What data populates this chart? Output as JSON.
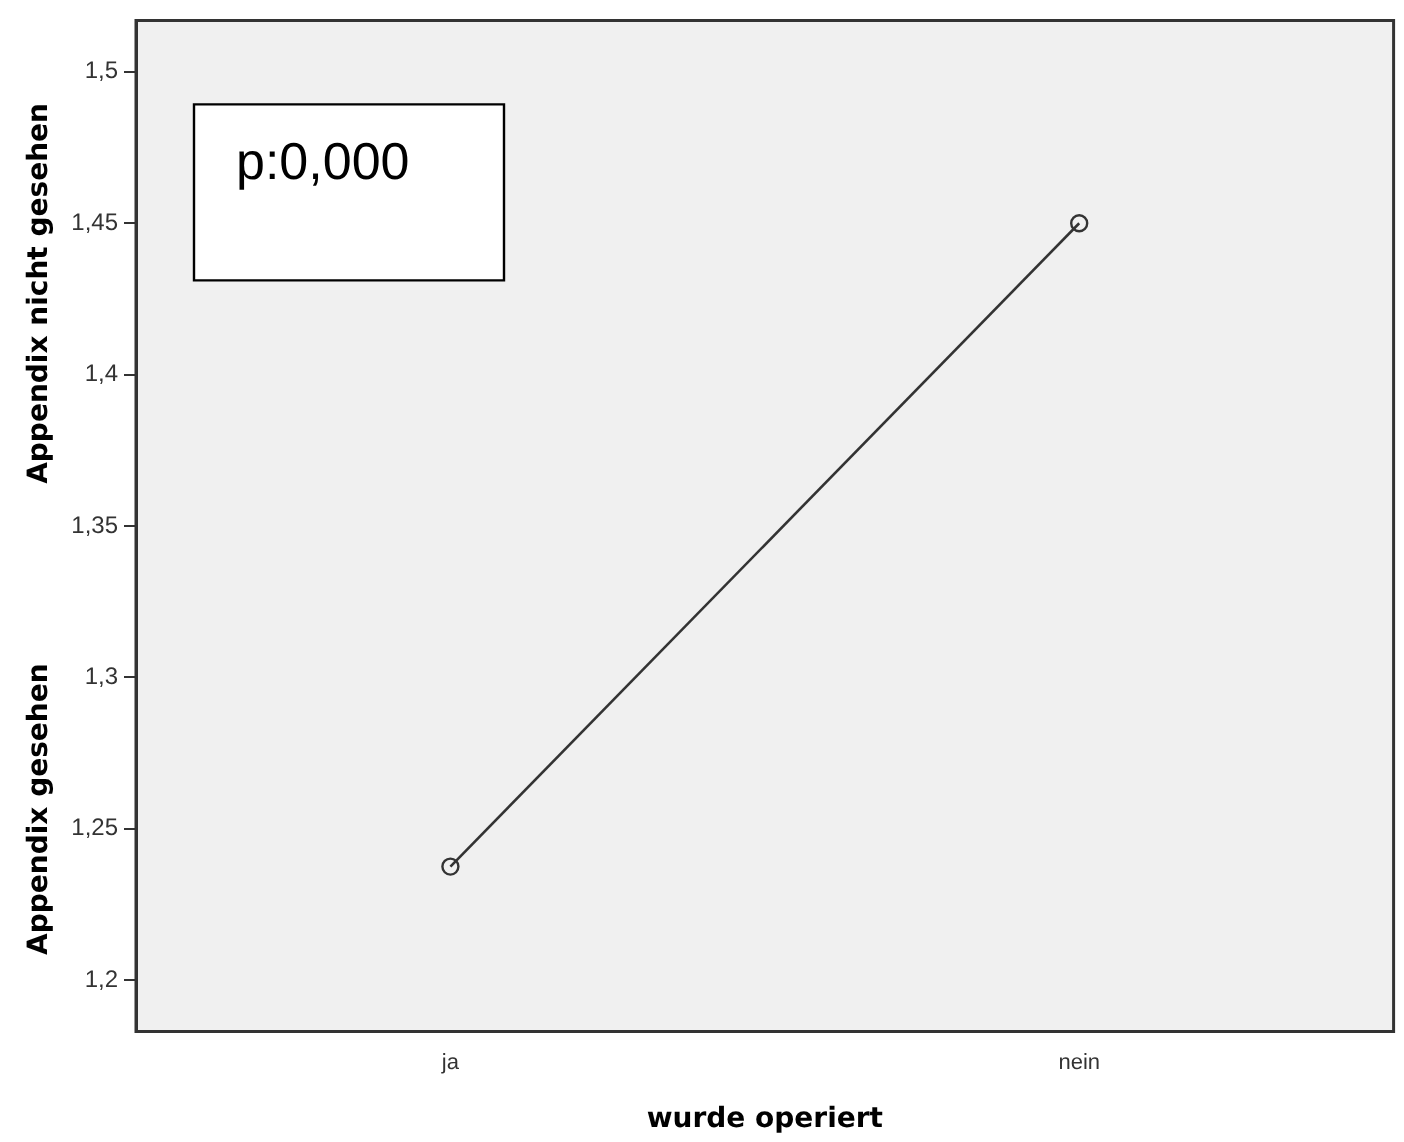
{
  "chart_data": {
    "type": "line",
    "xlabel": "wurde operiert",
    "ylabel": "Appendix gesehen",
    "annotations": [
      "p:0,000",
      "Appendix nicht gesehen"
    ],
    "categories": [
      "ja",
      "nein"
    ],
    "series": [
      {
        "color": "#333333",
        "values": [
          1.2375,
          1.45
        ]
      }
    ],
    "ylim": [
      1.183,
      1.517
    ],
    "yticks": [
      {
        "value": 1.2,
        "label": "1,2"
      },
      {
        "value": 1.25,
        "label": "1,25"
      },
      {
        "value": 1.3,
        "label": "1,3"
      },
      {
        "value": 1.35,
        "label": "1,35"
      },
      {
        "value": 1.4,
        "label": "1,4"
      },
      {
        "value": 1.45,
        "label": "1,45"
      },
      {
        "value": 1.5,
        "label": "1,5"
      }
    ],
    "grid": false,
    "legend": false,
    "marker": "circle",
    "line_style": "solid"
  }
}
